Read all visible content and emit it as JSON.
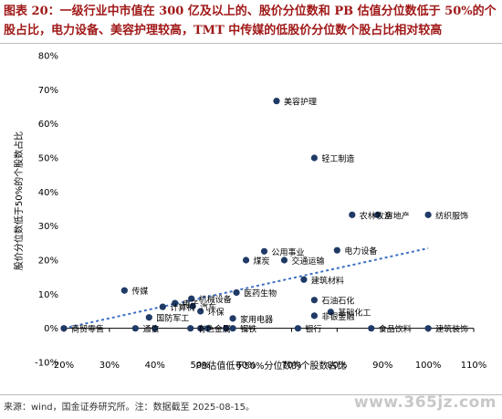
{
  "title": "图表 20：一级行业中市值在 300 亿及以上的、股价分位数和 PB 估值分位数低于 50%的个股占比，电力设备、美容护理较高，TMT 中传媒的低股价分位数个股占比相对较高",
  "source": "来源：wind，国金证券研究所。注：数据截至 2025-08-15。",
  "watermark": "www.365jz.com",
  "colors": {
    "point": "#1f3a66",
    "trend": "#3d6fc4",
    "title": "#a01818"
  },
  "chart_data": {
    "type": "scatter",
    "xlabel": "PB估值低于50%分位数的个股数占比",
    "ylabel": "股价分位数低于50%的个股数占比",
    "xlim": [
      0.2,
      1.1
    ],
    "ylim": [
      -0.1,
      0.8
    ],
    "x_ticks": [
      "20%",
      "30%",
      "40%",
      "50%",
      "60%",
      "70%",
      "80%",
      "90%",
      "100%",
      "110%"
    ],
    "y_ticks": [
      "-10%",
      "0%",
      "10%",
      "20%",
      "30%",
      "40%",
      "50%",
      "60%",
      "70%",
      "80%"
    ],
    "trendline": {
      "x": [
        0.2,
        1.0
      ],
      "y": [
        0.0,
        0.235
      ]
    },
    "points": [
      {
        "label": "美容护理",
        "x": 0.667,
        "y": 0.667
      },
      {
        "label": "轻工制造",
        "x": 0.75,
        "y": 0.5
      },
      {
        "label": "农林牧渔",
        "x": 0.833,
        "y": 0.333
      },
      {
        "label": "房地产",
        "x": 0.889,
        "y": 0.333
      },
      {
        "label": "纺织服饰",
        "x": 1.0,
        "y": 0.333
      },
      {
        "label": "电力设备",
        "x": 0.8,
        "y": 0.229
      },
      {
        "label": "公用事业",
        "x": 0.64,
        "y": 0.226
      },
      {
        "label": "煤炭",
        "x": 0.6,
        "y": 0.2
      },
      {
        "label": "交通运输",
        "x": 0.684,
        "y": 0.2
      },
      {
        "label": "建筑材料",
        "x": 0.727,
        "y": 0.143
      },
      {
        "label": "传媒",
        "x": 0.333,
        "y": 0.111
      },
      {
        "label": "医药生物",
        "x": 0.579,
        "y": 0.105
      },
      {
        "label": "机械设备",
        "x": 0.48,
        "y": 0.087
      },
      {
        "label": "石油石化",
        "x": 0.75,
        "y": 0.083
      },
      {
        "label": "电子",
        "x": 0.444,
        "y": 0.074
      },
      {
        "label": "计算机",
        "x": 0.417,
        "y": 0.063
      },
      {
        "label": "汽车",
        "x": 0.483,
        "y": 0.065
      },
      {
        "label": "环保",
        "x": 0.5,
        "y": 0.05
      },
      {
        "label": "基础化工",
        "x": 0.786,
        "y": 0.048
      },
      {
        "label": "非银金融",
        "x": 0.75,
        "y": 0.037
      },
      {
        "label": "国防军工",
        "x": 0.387,
        "y": 0.032
      },
      {
        "label": "家用电器",
        "x": 0.571,
        "y": 0.029
      },
      {
        "label": "商贸零售",
        "x": 0.2,
        "y": 0.0
      },
      {
        "label": "通信",
        "x": 0.357,
        "y": 0.0
      },
      {
        "label": "有色金属",
        "x": 0.478,
        "y": 0.0
      },
      {
        "label": "钢铁",
        "x": 0.571,
        "y": 0.0
      },
      {
        "label": "银行",
        "x": 0.714,
        "y": 0.0
      },
      {
        "label": "食品饮料",
        "x": 0.875,
        "y": 0.0
      },
      {
        "label": "建筑装饰",
        "x": 1.0,
        "y": 0.0
      },
      {
        "label": "",
        "x": 0.5,
        "y": 0.0
      },
      {
        "label": "",
        "x": 0.516,
        "y": 0.0
      },
      {
        "label": "",
        "x": 0.556,
        "y": 0.0
      },
      {
        "label": "",
        "x": 0.4,
        "y": 0.0
      }
    ]
  }
}
